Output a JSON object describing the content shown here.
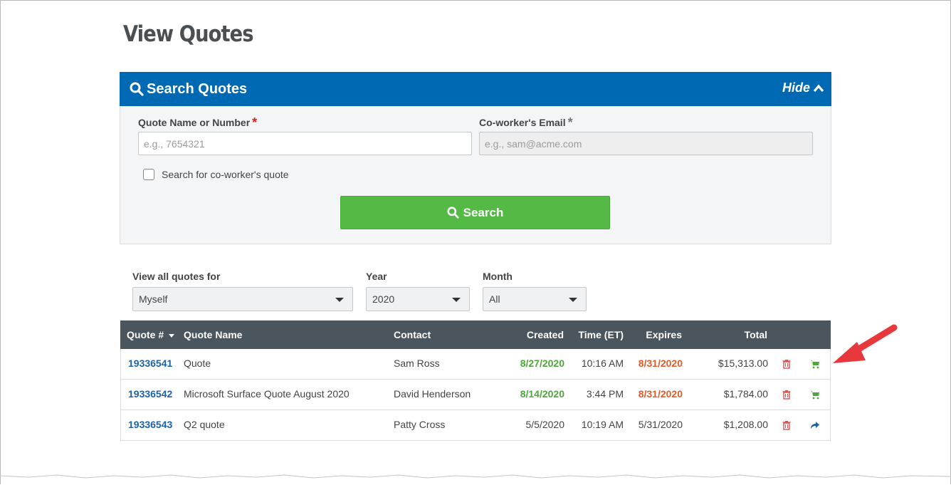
{
  "page": {
    "title": "View Quotes"
  },
  "search_panel": {
    "title": "Search Quotes",
    "hide_label": "Hide",
    "quote_field": {
      "label": "Quote Name or Number",
      "required_mark": "*",
      "placeholder": "e.g., 7654321",
      "value": ""
    },
    "email_field": {
      "label": "Co-worker's Email",
      "required_mark": "*",
      "placeholder": "e.g., sam@acme.com",
      "value": ""
    },
    "checkbox": {
      "label": "Search for co-worker's quote",
      "checked": false
    },
    "search_button": "Search",
    "accent": "#0069b4",
    "button_color": "#55b946"
  },
  "filters": {
    "view_all": {
      "label": "View all quotes for",
      "selected": "Myself"
    },
    "year": {
      "label": "Year",
      "selected": "2020"
    },
    "month": {
      "label": "Month",
      "selected": "All"
    }
  },
  "table": {
    "headers": {
      "quote_num": "Quote #",
      "quote_name": "Quote Name",
      "contact": "Contact",
      "created": "Created",
      "time": "Time (ET)",
      "expires": "Expires",
      "total": "Total"
    },
    "rows": [
      {
        "quote_num": "19336541",
        "quote_name": "Quote",
        "contact": "Sam Ross",
        "created": "8/27/2020",
        "time": "10:16 AM",
        "expires": "8/31/2020",
        "total": "$15,313.00",
        "action_icon": "cart-icon"
      },
      {
        "quote_num": "19336542",
        "quote_name": "Microsoft Surface Quote August 2020",
        "contact": "David Henderson",
        "created": "8/14/2020",
        "time": "3:44 PM",
        "expires": "8/31/2020",
        "total": "$1,784.00",
        "action_icon": "cart-icon"
      },
      {
        "quote_num": "19336543",
        "quote_name": "Q2 quote",
        "contact": "Patty Cross",
        "created": "5/5/2020",
        "time": "10:19 AM",
        "expires": "5/31/2020",
        "total": "$1,208.00",
        "action_icon": "share-arrow-icon"
      }
    ]
  },
  "annotation": {
    "icon": "red-arrow-icon",
    "color": "#e8383d"
  }
}
